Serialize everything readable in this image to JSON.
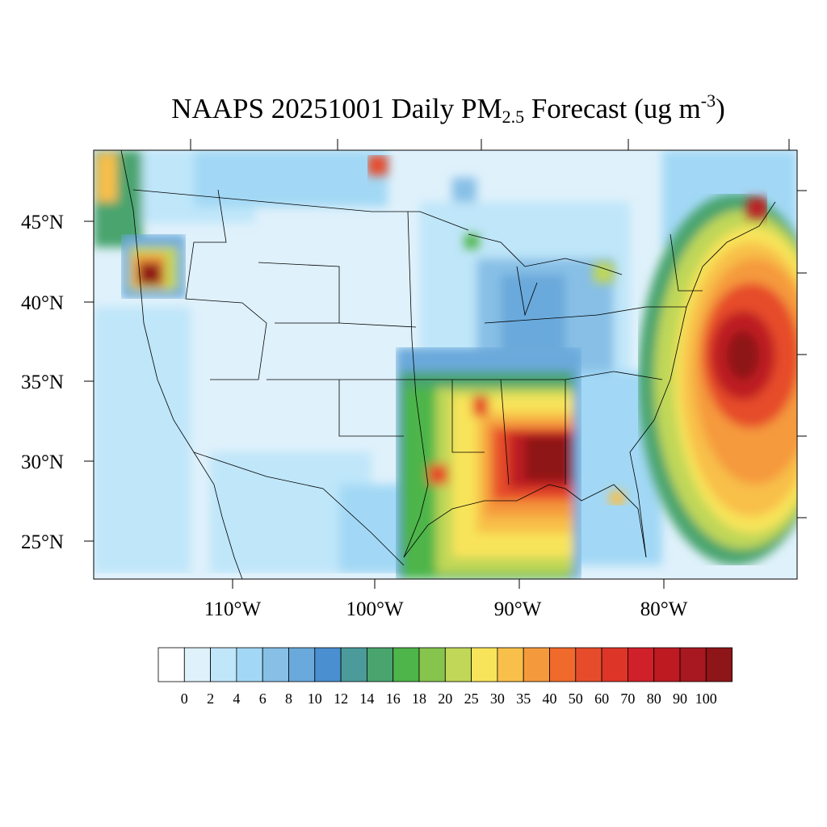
{
  "title": {
    "main": "NAAPS 20251001 Daily PM",
    "sub": "2.5",
    "mid": " Forecast (ug m",
    "sup": "-3",
    "end": ")"
  },
  "map": {
    "lon_labels": [
      "110°W",
      "100°W",
      "90°W",
      "80°W"
    ],
    "lat_labels": [
      "45°N",
      "40°N",
      "35°N",
      "30°N",
      "25°N"
    ]
  },
  "legend": {
    "colors": [
      "#ffffff",
      "#dff1fb",
      "#bfe6f9",
      "#a2d8f5",
      "#87bfe6",
      "#6aa9db",
      "#4a8fcf",
      "#4b9b9b",
      "#4aa46e",
      "#4db549",
      "#86c44d",
      "#c0d758",
      "#f8e45a",
      "#f8bf4a",
      "#f59a3c",
      "#f06a2c",
      "#e64c2c",
      "#dd3527",
      "#d0202a",
      "#bd1a22",
      "#a71820",
      "#8e1518"
    ],
    "labels": [
      "0",
      "2",
      "4",
      "6",
      "8",
      "10",
      "12",
      "14",
      "16",
      "18",
      "20",
      "25",
      "30",
      "35",
      "40",
      "50",
      "60",
      "70",
      "80",
      "90",
      "100"
    ]
  }
}
